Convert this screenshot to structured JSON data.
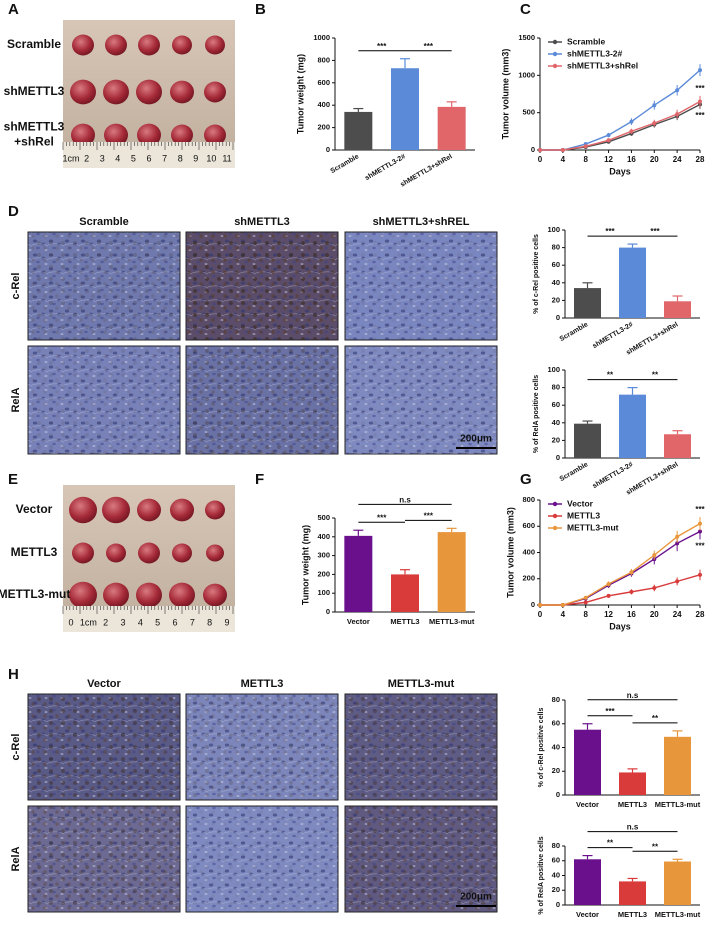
{
  "panels": {
    "A": {
      "letter": "A",
      "rows": [
        [
          "Scramble"
        ],
        [
          "shMETTL3"
        ],
        [
          "shMETTL3",
          "+shRel"
        ]
      ],
      "ruler": [
        "1cm",
        "2",
        "3",
        "4",
        "5",
        "6",
        "7",
        "8",
        "9",
        "10",
        "11"
      ]
    },
    "B": {
      "letter": "B"
    },
    "C": {
      "letter": "C"
    },
    "D": {
      "letter": "D",
      "columns": [
        "Scramble",
        "shMETTL3",
        "shMETTL3+shREL"
      ],
      "rows": [
        "c-Rel",
        "RelA"
      ],
      "scale_bar": "200μm"
    },
    "E": {
      "letter": "E",
      "rows": [
        [
          "Vector"
        ],
        [
          "METTL3"
        ],
        [
          "METTL3-mut"
        ]
      ],
      "ruler": [
        "0",
        "1cm",
        "2",
        "3",
        "4",
        "5",
        "6",
        "7",
        "8",
        "9"
      ]
    },
    "F": {
      "letter": "F"
    },
    "G": {
      "letter": "G"
    },
    "H": {
      "letter": "H",
      "columns": [
        "Vector",
        "METTL3",
        "METTL3-mut"
      ],
      "rows": [
        "c-Rel",
        "RelA"
      ],
      "scale_bar": "200μm"
    }
  },
  "chart_data": [
    {
      "type": "bar",
      "ylabel": "Tumor weight (mg)",
      "categories": [
        "Scramble",
        "shMETTL3-2#",
        "shMETTL3+shRel"
      ],
      "values": [
        340,
        730,
        385
      ],
      "errors": [
        30,
        85,
        45
      ],
      "colors": [
        "#4d4d4d",
        "#5b8bd8",
        "#e0666a"
      ],
      "ylim": [
        0,
        1000
      ],
      "yticks": [
        0,
        200,
        400,
        600,
        800,
        1000
      ],
      "significance": [
        {
          "text": "***",
          "pair": [
            "Scramble",
            "shMETTL3-2#"
          ]
        },
        {
          "text": "***",
          "pair": [
            "shMETTL3-2#",
            "shMETTL3+shRel"
          ]
        }
      ]
    },
    {
      "type": "line",
      "ylabel": "Tumor volume (mm3)",
      "xlabel": "Days",
      "x": [
        0,
        4,
        8,
        12,
        16,
        20,
        24,
        28
      ],
      "xlim": [
        0,
        28
      ],
      "xticks": [
        0,
        4,
        8,
        12,
        16,
        20,
        24,
        28
      ],
      "ylim": [
        0,
        1500
      ],
      "yticks": [
        0,
        500,
        1000,
        1500
      ],
      "series": [
        {
          "name": "Scramble",
          "color": "#4d4d4d",
          "values": [
            0,
            0,
            40,
            110,
            220,
            340,
            450,
            610
          ],
          "errors": [
            0,
            0,
            15,
            20,
            30,
            40,
            50,
            60
          ]
        },
        {
          "name": "shMETTL3-2#",
          "color": "#5b8bd8",
          "values": [
            0,
            0,
            80,
            200,
            380,
            600,
            800,
            1070
          ],
          "errors": [
            0,
            0,
            20,
            30,
            45,
            60,
            70,
            80
          ]
        },
        {
          "name": "shMETTL3+shRel",
          "color": "#e0666a",
          "values": [
            0,
            0,
            50,
            130,
            250,
            360,
            480,
            650
          ],
          "errors": [
            0,
            0,
            15,
            25,
            35,
            45,
            60,
            75
          ]
        }
      ],
      "significance": [
        {
          "text": "***",
          "series": "shMETTL3+shRel",
          "side": "above"
        },
        {
          "text": "***",
          "series": "Scramble",
          "side": "below"
        }
      ]
    },
    {
      "type": "bar",
      "ylabel": "% of c-Rel positive cells",
      "categories": [
        "Scramble",
        "shMETTL3-2#",
        "shMETTL3+shRel"
      ],
      "values": [
        34,
        80,
        19
      ],
      "errors": [
        6,
        4,
        6
      ],
      "colors": [
        "#4d4d4d",
        "#5b8bd8",
        "#e0666a"
      ],
      "ylim": [
        0,
        100
      ],
      "yticks": [
        0,
        20,
        40,
        60,
        80,
        100
      ],
      "significance": [
        {
          "text": "***",
          "pair": [
            "Scramble",
            "shMETTL3-2#"
          ]
        },
        {
          "text": "***",
          "pair": [
            "shMETTL3-2#",
            "shMETTL3+shRel"
          ]
        }
      ]
    },
    {
      "type": "bar",
      "ylabel": "% of RelA positive cells",
      "categories": [
        "Scramble",
        "shMETTL3-2#",
        "shMETTL3+shRel"
      ],
      "values": [
        39,
        72,
        27
      ],
      "errors": [
        3,
        8,
        4
      ],
      "colors": [
        "#4d4d4d",
        "#5b8bd8",
        "#e0666a"
      ],
      "ylim": [
        0,
        100
      ],
      "yticks": [
        0,
        20,
        40,
        60,
        80,
        100
      ],
      "significance": [
        {
          "text": "**",
          "pair": [
            "Scramble",
            "shMETTL3-2#"
          ]
        },
        {
          "text": "**",
          "pair": [
            "shMETTL3-2#",
            "shMETTL3+shRel"
          ]
        }
      ]
    },
    {
      "type": "bar",
      "ylabel": "Tumor weight (mg)",
      "categories": [
        "Vector",
        "METTL3",
        "METTL3-mut"
      ],
      "values": [
        405,
        200,
        425
      ],
      "errors": [
        30,
        25,
        20
      ],
      "colors": [
        "#6a108c",
        "#d93a3a",
        "#e8963c"
      ],
      "ylim": [
        0,
        500
      ],
      "yticks": [
        0,
        100,
        200,
        300,
        400,
        500
      ],
      "significance": [
        {
          "text": "n.s",
          "pair": [
            "Vector",
            "METTL3-mut"
          ]
        },
        {
          "text": "***",
          "pair": [
            "Vector",
            "METTL3"
          ]
        },
        {
          "text": "***",
          "pair": [
            "METTL3",
            "METTL3-mut"
          ]
        }
      ]
    },
    {
      "type": "line",
      "ylabel": "Tumor volume (mm3)",
      "xlabel": "Days",
      "x": [
        0,
        4,
        8,
        12,
        16,
        20,
        24,
        28
      ],
      "xlim": [
        0,
        28
      ],
      "xticks": [
        0,
        4,
        8,
        12,
        16,
        20,
        24,
        28
      ],
      "ylim": [
        0,
        800
      ],
      "yticks": [
        0,
        200,
        400,
        600,
        800
      ],
      "series": [
        {
          "name": "Vector",
          "color": "#6a108c",
          "values": [
            0,
            0,
            50,
            150,
            240,
            350,
            470,
            560
          ],
          "errors": [
            0,
            0,
            10,
            20,
            25,
            40,
            60,
            60
          ]
        },
        {
          "name": "METTL3",
          "color": "#d93a3a",
          "values": [
            0,
            0,
            20,
            70,
            100,
            130,
            180,
            230
          ],
          "errors": [
            0,
            0,
            5,
            10,
            20,
            25,
            30,
            40
          ]
        },
        {
          "name": "METTL3-mut",
          "color": "#e8963c",
          "values": [
            0,
            0,
            55,
            160,
            250,
            380,
            520,
            620
          ],
          "errors": [
            0,
            0,
            10,
            20,
            25,
            35,
            45,
            50
          ]
        }
      ],
      "significance": [
        {
          "text": "***",
          "series": "METTL3-mut",
          "side": "above"
        },
        {
          "text": "***",
          "series": "Vector",
          "side": "below"
        }
      ]
    },
    {
      "type": "bar",
      "ylabel": "% of c-Rel positive cells",
      "categories": [
        "Vector",
        "METTL3",
        "METTL3-mut"
      ],
      "values": [
        55,
        19,
        49
      ],
      "errors": [
        5,
        3,
        5
      ],
      "colors": [
        "#6a108c",
        "#d93a3a",
        "#e8963c"
      ],
      "ylim": [
        0,
        80
      ],
      "yticks": [
        0,
        20,
        40,
        60,
        80
      ],
      "significance": [
        {
          "text": "n.s",
          "pair": [
            "Vector",
            "METTL3-mut"
          ]
        },
        {
          "text": "***",
          "pair": [
            "Vector",
            "METTL3"
          ]
        },
        {
          "text": "**",
          "pair": [
            "METTL3",
            "METTL3-mut"
          ]
        }
      ]
    },
    {
      "type": "bar",
      "ylabel": "% of RelA positive cells",
      "categories": [
        "Vector",
        "METTL3",
        "METTL3-mut"
      ],
      "values": [
        62,
        32,
        59
      ],
      "errors": [
        5,
        4,
        3
      ],
      "colors": [
        "#6a108c",
        "#d93a3a",
        "#e8963c"
      ],
      "ylim": [
        0,
        80
      ],
      "yticks": [
        0,
        20,
        40,
        60,
        80
      ],
      "significance": [
        {
          "text": "n.s",
          "pair": [
            "Vector",
            "METTL3-mut"
          ]
        },
        {
          "text": "**",
          "pair": [
            "Vector",
            "METTL3"
          ]
        },
        {
          "text": "**",
          "pair": [
            "METTL3",
            "METTL3-mut"
          ]
        }
      ]
    }
  ]
}
